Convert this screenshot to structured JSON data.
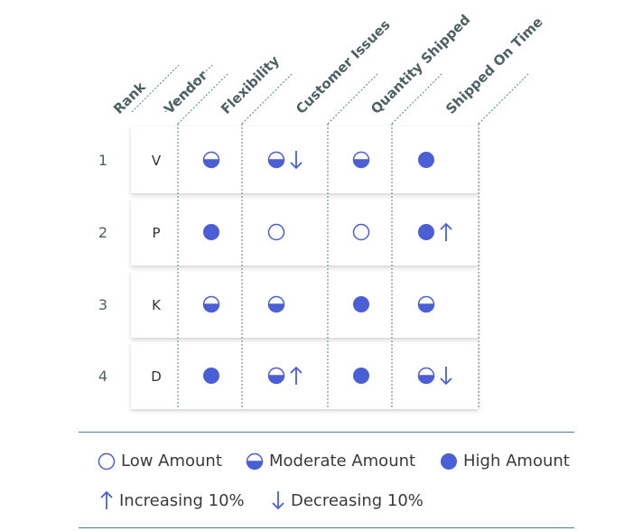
{
  "columns": [
    "Rank",
    "Vendor",
    "Flexibility",
    "Customer Issues",
    "Quantity Shipped",
    "Shipped On Time"
  ],
  "rows": [
    {
      "rank": "1",
      "vendor": "V",
      "cells": [
        {
          "fill": "moderate",
          "trend": null
        },
        {
          "fill": "moderate",
          "trend": "down"
        },
        {
          "fill": "moderate",
          "trend": null
        },
        {
          "fill": "high",
          "trend": null
        }
      ]
    },
    {
      "rank": "2",
      "vendor": "P",
      "cells": [
        {
          "fill": "high",
          "trend": null
        },
        {
          "fill": "low",
          "trend": null
        },
        {
          "fill": "low",
          "trend": null
        },
        {
          "fill": "high",
          "trend": "up"
        }
      ]
    },
    {
      "rank": "3",
      "vendor": "K",
      "cells": [
        {
          "fill": "moderate",
          "trend": null
        },
        {
          "fill": "moderate",
          "trend": null
        },
        {
          "fill": "high",
          "trend": null
        },
        {
          "fill": "moderate",
          "trend": null
        }
      ]
    },
    {
      "rank": "4",
      "vendor": "D",
      "cells": [
        {
          "fill": "high",
          "trend": null
        },
        {
          "fill": "moderate",
          "trend": "up"
        },
        {
          "fill": "high",
          "trend": null
        },
        {
          "fill": "moderate",
          "trend": "down"
        }
      ]
    }
  ],
  "legend": {
    "low": "Low Amount",
    "moderate": "Moderate Amount",
    "high": "High Amount",
    "increasing": "Increasing 10%",
    "decreasing": "Decreasing 10%"
  },
  "colors": {
    "accent": "#4a5fd6",
    "header_text": "#4d6163",
    "divider": "#4b7f8a",
    "body_text": "#3a3a3a"
  }
}
